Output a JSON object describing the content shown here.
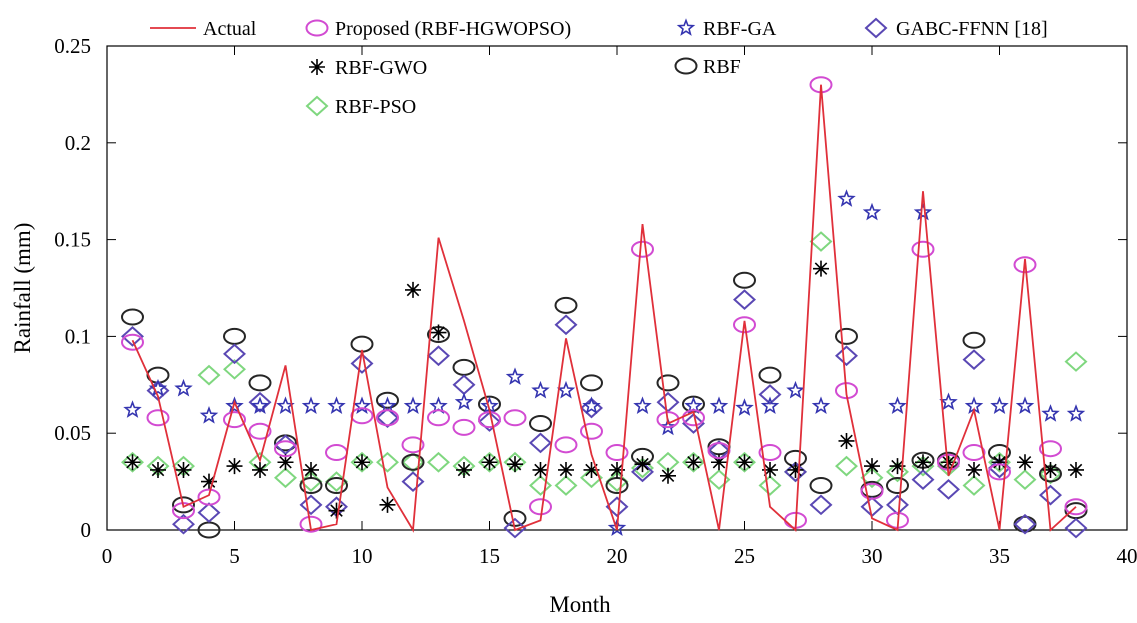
{
  "chart_data": {
    "type": "line",
    "title": "",
    "xlabel": "Month",
    "ylabel": "Rainfall (mm)",
    "xlim": [
      0,
      40
    ],
    "ylim": [
      0,
      0.25
    ],
    "xticks": [
      0,
      5,
      10,
      15,
      20,
      25,
      30,
      35,
      40
    ],
    "xtick_labels": [
      "0",
      "5",
      "10",
      "15",
      "20",
      "25",
      "30",
      "35",
      "40"
    ],
    "yticks": [
      0,
      0.05,
      0.1,
      0.15,
      0.2,
      0.25
    ],
    "ytick_labels": [
      "0",
      "0.05",
      "0.1",
      "0.15",
      "0.2",
      "0.25"
    ],
    "grid": false,
    "legend_position": "top",
    "x": [
      1,
      2,
      3,
      4,
      5,
      6,
      7,
      8,
      9,
      10,
      11,
      12,
      13,
      14,
      15,
      16,
      17,
      18,
      19,
      20,
      21,
      22,
      23,
      24,
      25,
      26,
      27,
      28,
      29,
      30,
      31,
      32,
      33,
      34,
      35,
      36,
      37,
      38
    ],
    "series": [
      {
        "name": "Actual",
        "marker": "line",
        "color": "#e0303a",
        "values": [
          0.098,
          0.069,
          0.012,
          0.018,
          0.066,
          0.036,
          0.085,
          0.0,
          0.003,
          0.093,
          0.022,
          0.0,
          0.151,
          0.108,
          0.062,
          0.0,
          0.005,
          0.099,
          0.039,
          0.0,
          0.158,
          0.055,
          0.061,
          0.0,
          0.108,
          0.012,
          0.0,
          0.23,
          0.07,
          0.006,
          0.0,
          0.175,
          0.028,
          0.062,
          0.0,
          0.14,
          0.0,
          0.012
        ]
      },
      {
        "name": "Proposed (RBF-HGWOPSO)",
        "marker": "circle",
        "color": "#d24bd2",
        "values": [
          0.097,
          0.058,
          0.01,
          0.017,
          0.057,
          0.051,
          0.042,
          0.003,
          0.04,
          0.059,
          0.058,
          0.044,
          0.058,
          0.053,
          0.057,
          0.058,
          0.012,
          0.044,
          0.051,
          0.04,
          0.145,
          0.057,
          0.058,
          0.041,
          0.106,
          0.04,
          0.005,
          0.23,
          0.072,
          0.02,
          0.005,
          0.145,
          0.035,
          0.04,
          0.03,
          0.137,
          0.042,
          0.012
        ]
      },
      {
        "name": "RBF-GA",
        "marker": "star",
        "color": "#3535b0",
        "values": [
          0.062,
          0.073,
          0.073,
          0.059,
          0.064,
          0.064,
          0.064,
          0.064,
          0.064,
          0.064,
          0.064,
          0.064,
          0.064,
          0.066,
          0.064,
          0.079,
          0.072,
          0.072,
          0.064,
          0.001,
          0.064,
          0.053,
          0.064,
          0.064,
          0.063,
          0.064,
          0.072,
          0.064,
          0.171,
          0.164,
          0.064,
          0.164,
          0.066,
          0.064,
          0.064,
          0.064,
          0.06,
          0.06
        ]
      },
      {
        "name": "GABC-FFNN [18]",
        "marker": "diamond",
        "color": "#5a48b4",
        "values": [
          0.1,
          0.072,
          0.003,
          0.009,
          0.091,
          0.066,
          0.044,
          0.013,
          0.012,
          0.086,
          0.058,
          0.025,
          0.09,
          0.075,
          0.056,
          0.001,
          0.045,
          0.106,
          0.063,
          0.012,
          0.03,
          0.066,
          0.055,
          0.041,
          0.119,
          0.07,
          0.03,
          0.013,
          0.09,
          0.012,
          0.013,
          0.026,
          0.021,
          0.088,
          0.032,
          0.003,
          0.018,
          0.001
        ]
      },
      {
        "name": "RBF-GWO",
        "marker": "asterisk",
        "color": "#000000",
        "values": [
          0.035,
          0.031,
          0.031,
          0.025,
          0.033,
          0.031,
          0.035,
          0.031,
          0.01,
          0.035,
          0.013,
          0.124,
          0.102,
          0.031,
          0.035,
          0.034,
          0.031,
          0.031,
          0.031,
          0.031,
          0.034,
          0.028,
          0.035,
          0.035,
          0.035,
          0.031,
          0.031,
          0.135,
          0.046,
          0.033,
          0.033,
          0.035,
          0.035,
          0.031,
          0.035,
          0.035,
          0.031,
          0.031
        ]
      },
      {
        "name": "RBF",
        "marker": "circle",
        "color": "#262626",
        "values": [
          0.11,
          0.08,
          0.013,
          0.0,
          0.1,
          0.076,
          0.045,
          0.023,
          0.023,
          0.096,
          0.067,
          0.035,
          0.101,
          0.084,
          0.065,
          0.006,
          0.055,
          0.116,
          0.076,
          0.023,
          0.038,
          0.076,
          0.065,
          0.043,
          0.129,
          0.08,
          0.037,
          0.023,
          0.1,
          0.021,
          0.023,
          0.036,
          0.036,
          0.098,
          0.04,
          0.003,
          0.029,
          0.01
        ]
      },
      {
        "name": "RBF-PSO",
        "marker": "diamond",
        "color": "#7fd77f",
        "values": [
          0.035,
          0.033,
          0.033,
          0.08,
          0.083,
          0.035,
          0.027,
          0.025,
          0.025,
          0.035,
          0.035,
          0.035,
          0.035,
          0.033,
          0.035,
          0.035,
          0.023,
          0.023,
          0.027,
          0.025,
          0.032,
          0.035,
          0.035,
          0.026,
          0.035,
          0.023,
          0.03,
          0.149,
          0.033,
          0.027,
          0.03,
          0.033,
          0.033,
          0.023,
          0.035,
          0.026,
          0.029,
          0.087
        ]
      }
    ]
  }
}
